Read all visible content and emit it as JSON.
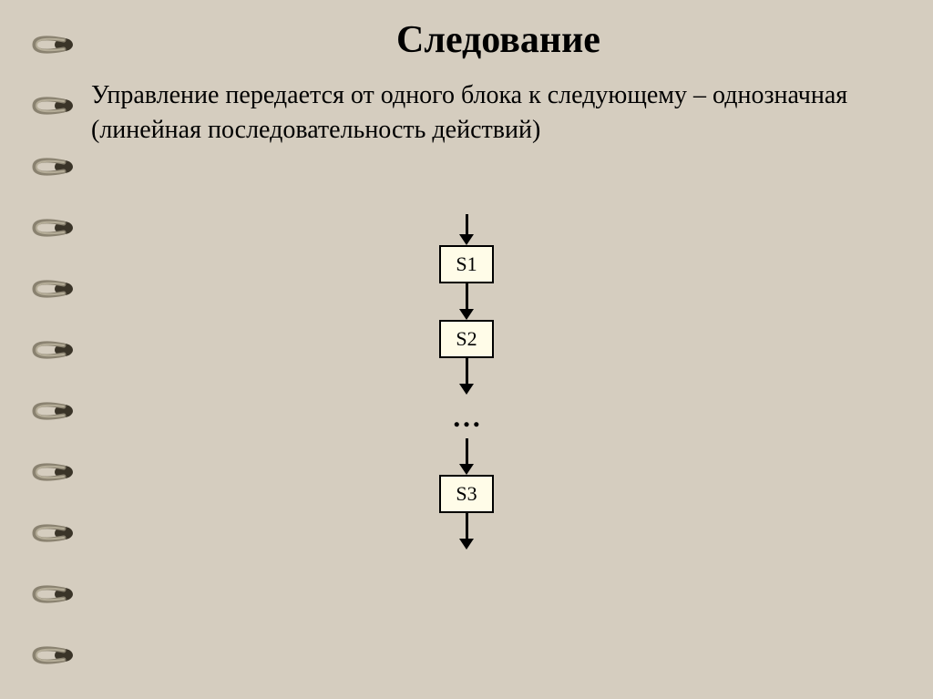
{
  "slide": {
    "title": "Следование",
    "description": "Управление передается от одного блока к следующему – однозначная (линейная последовательность действий)",
    "background_color": "#d5cdbf",
    "title_fontsize": 42,
    "description_fontsize": 28,
    "text_color": "#000000"
  },
  "spiral": {
    "ring_count": 11,
    "ring_color": "#8a8270",
    "hole_color": "#3a3428"
  },
  "flowchart": {
    "type": "flowchart",
    "direction": "vertical",
    "nodes": [
      {
        "id": "s1",
        "label": "S1",
        "type": "process"
      },
      {
        "id": "s2",
        "label": "S2",
        "type": "process"
      },
      {
        "id": "ellipsis",
        "label": "…",
        "type": "text"
      },
      {
        "id": "s3",
        "label": "S3",
        "type": "process"
      }
    ],
    "block_style": {
      "fill_color": "#fffce8",
      "border_color": "#000000",
      "border_width": 2,
      "width": 60,
      "height": 42,
      "font_size": 22
    },
    "arrow_style": {
      "color": "#000000",
      "line_width": 3,
      "head_width": 16,
      "head_height": 12
    },
    "arrows": {
      "entry_length": 22,
      "between_length": 28,
      "exit_length": 28
    }
  }
}
